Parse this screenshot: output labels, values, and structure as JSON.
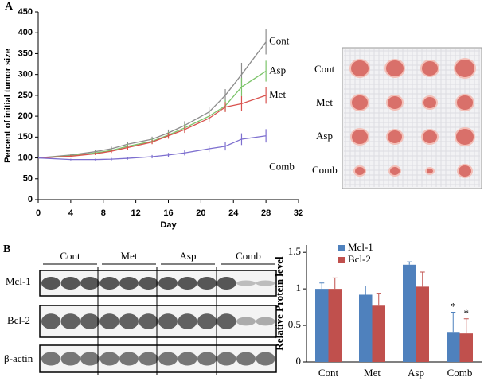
{
  "panel_labels": [
    "A",
    "B"
  ],
  "photo": {
    "row_labels": [
      "Cont",
      "Met",
      "Asp",
      "Comb"
    ]
  },
  "blot": {
    "group_labels": [
      "Cont",
      "Met",
      "Asp",
      "Comb"
    ],
    "row_labels": [
      "Mcl-1",
      "Bcl-2",
      "β-actin"
    ]
  },
  "chart_data": [
    {
      "type": "line",
      "ylabel": "Percent of initial tumor size",
      "xlabel": "Day",
      "x": [
        0,
        4,
        7,
        9,
        11,
        14,
        16,
        18,
        21,
        23,
        25,
        28
      ],
      "xlim": [
        0,
        32
      ],
      "xticks": [
        0,
        4,
        8,
        12,
        16,
        20,
        24,
        28,
        32
      ],
      "ylim": [
        0,
        450
      ],
      "yticks": [
        0,
        50,
        100,
        150,
        200,
        250,
        300,
        350,
        400,
        450
      ],
      "series": [
        {
          "name": "Cont",
          "color": "#8c8c8c",
          "values": [
            100,
            107,
            115,
            122,
            133,
            145,
            160,
            178,
            210,
            250,
            300,
            378
          ],
          "errors": [
            0,
            3,
            4,
            5,
            6,
            6,
            8,
            10,
            12,
            15,
            28,
            30
          ]
        },
        {
          "name": "Asp",
          "color": "#7cc46a",
          "values": [
            100,
            105,
            112,
            118,
            128,
            140,
            155,
            172,
            200,
            225,
            270,
            308
          ],
          "errors": [
            0,
            3,
            3,
            4,
            5,
            6,
            7,
            9,
            10,
            14,
            22,
            25
          ]
        },
        {
          "name": "Met",
          "color": "#d9534f",
          "values": [
            100,
            104,
            110,
            116,
            125,
            138,
            153,
            168,
            195,
            222,
            230,
            250
          ],
          "errors": [
            0,
            3,
            3,
            4,
            5,
            5,
            7,
            8,
            10,
            12,
            18,
            20
          ]
        },
        {
          "name": "Comb",
          "color": "#7d6fcf",
          "values": [
            100,
            96,
            96,
            97,
            99,
            103,
            107,
            112,
            122,
            128,
            145,
            153
          ],
          "errors": [
            0,
            2,
            2,
            3,
            3,
            4,
            5,
            6,
            8,
            10,
            14,
            16
          ]
        }
      ]
    },
    {
      "type": "bar",
      "ylabel": "Relative Protein level",
      "categories": [
        "Cont",
        "Met",
        "Asp",
        "Comb"
      ],
      "ylim": [
        0,
        1.6
      ],
      "yticks": [
        0,
        0.5,
        1,
        1.5
      ],
      "legend": "top-left",
      "series": [
        {
          "name": "Mcl-1",
          "color": "#4f81bd",
          "values": [
            1.0,
            0.92,
            1.33,
            0.4
          ],
          "errors": [
            0.08,
            0.12,
            0.04,
            0.28
          ]
        },
        {
          "name": "Bcl-2",
          "color": "#c0504d",
          "values": [
            1.0,
            0.77,
            1.03,
            0.39
          ],
          "errors": [
            0.15,
            0.17,
            0.2,
            0.2
          ]
        }
      ],
      "annotations": [
        "*",
        "*"
      ]
    }
  ]
}
